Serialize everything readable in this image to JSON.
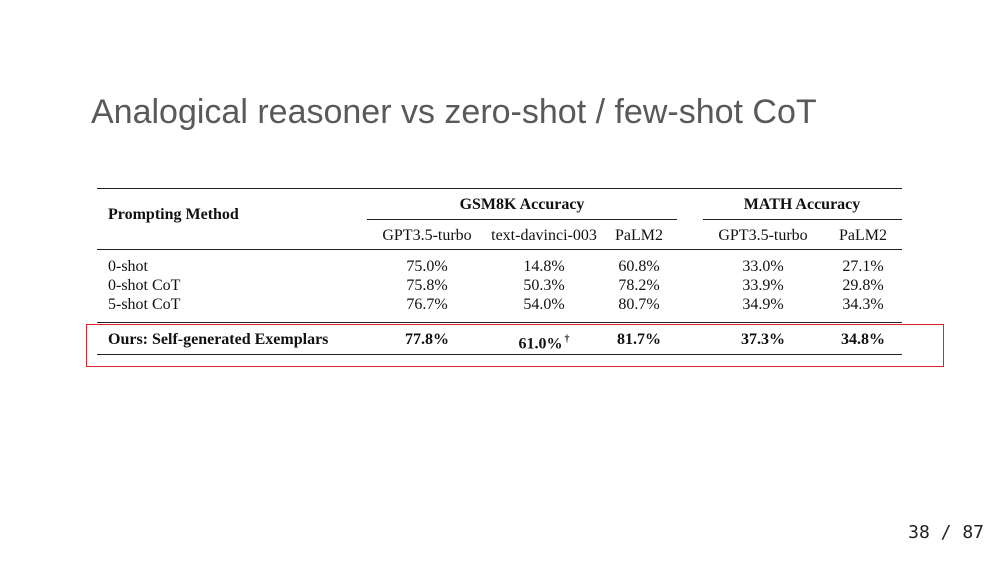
{
  "slide": {
    "title": "Analogical reasoner vs zero-shot / few-shot CoT",
    "page_number": "38 / 87",
    "highlight_color": "#d9262c"
  },
  "table": {
    "method_header": "Prompting Method",
    "group_gsm8k": "GSM8K Accuracy",
    "group_math": "MATH Accuracy",
    "columns": [
      "GPT3.5-turbo",
      "text-davinci-003",
      "PaLM2",
      "GPT3.5-turbo",
      "PaLM2"
    ],
    "rows": [
      {
        "method": "0-shot",
        "values": [
          "75.0%",
          "14.8%",
          "60.8%",
          "33.0%",
          "27.1%"
        ]
      },
      {
        "method": "0-shot CoT",
        "values": [
          "75.8%",
          "50.3%",
          "78.2%",
          "33.9%",
          "29.8%"
        ]
      },
      {
        "method": "5-shot CoT",
        "values": [
          "76.7%",
          "54.0%",
          "80.7%",
          "34.9%",
          "34.3%"
        ]
      }
    ],
    "ours": {
      "method": "Ours: Self-generated Exemplars",
      "values": [
        "77.8%",
        "61.0%",
        "81.7%",
        "37.3%",
        "34.8%"
      ],
      "dagger": "†"
    }
  }
}
